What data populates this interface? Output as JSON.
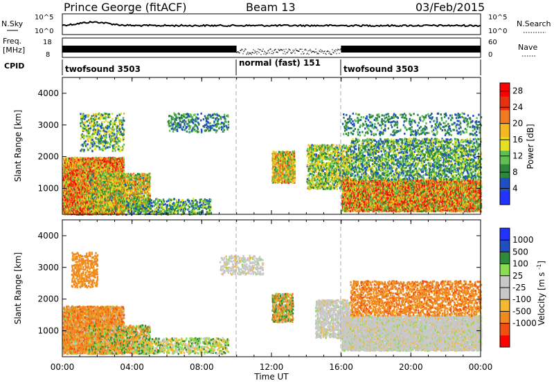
{
  "header": {
    "station": "Prince George (fitACF)",
    "beam": "Beam 13",
    "date": "03/Feb/2015"
  },
  "strips": {
    "nsky": {
      "label": "N.Sky",
      "ticks_left": [
        "10^5",
        "10^0"
      ],
      "ticks_right": [
        "10^5",
        "10^0"
      ],
      "right_label": "N.Search"
    },
    "freq": {
      "label_line1": "Freq.",
      "label_line2": "[MHz]",
      "ticks_left": [
        "18",
        "8"
      ],
      "ticks_right": [
        "60",
        "0"
      ],
      "right_label": "Nave"
    },
    "cpid": {
      "label": "CPID",
      "segments": [
        {
          "name": "twofsound 3503",
          "start_h": 0,
          "end_h": 10
        },
        {
          "name": "normal (fast) 151",
          "start_h": 10,
          "end_h": 16
        },
        {
          "name": "twofsound 3503",
          "start_h": 16,
          "end_h": 24
        }
      ]
    }
  },
  "x_axis": {
    "label": "Time UT",
    "ticks": [
      "00:00",
      "04:00",
      "08:00",
      "12:00",
      "16:00",
      "20:00",
      "00:00"
    ]
  },
  "colors": {
    "power_scale": [
      "#2233ff",
      "#1f4fc0",
      "#2a8a3a",
      "#5fbf50",
      "#e6e020",
      "#f6b820",
      "#f07a20",
      "#e83010",
      "#ff0000"
    ],
    "velocity_scale": [
      "#ff0000",
      "#f05010",
      "#f08a20",
      "#f6b830",
      "#c8c8c8",
      "#c8c8c8",
      "#8adc50",
      "#2c8a3a",
      "#1f4fc0",
      "#2233ff"
    ]
  },
  "chart_data": [
    {
      "type": "heatmap",
      "title": "Power",
      "ylabel": "Slant Range [km]",
      "xlabel": "",
      "xlim": [
        0,
        24
      ],
      "ylim": [
        180,
        4500
      ],
      "yticks": [
        1000,
        2000,
        3000,
        4000
      ],
      "colorbar": {
        "label": "Power [dB]",
        "ticks": [
          4,
          8,
          12,
          16,
          20,
          24,
          28
        ],
        "range": [
          0,
          30
        ]
      },
      "scatter_regions": [
        {
          "x_range_h": [
            0,
            3.5
          ],
          "y_range_km": [
            200,
            2000
          ],
          "value_range": [
            10,
            30
          ],
          "density": 0.9
        },
        {
          "x_range_h": [
            1.5,
            5.0
          ],
          "y_range_km": [
            300,
            1500
          ],
          "value_range": [
            6,
            24
          ],
          "density": 0.6
        },
        {
          "x_range_h": [
            1.0,
            3.5
          ],
          "y_range_km": [
            2200,
            3400
          ],
          "value_range": [
            4,
            18
          ],
          "density": 0.25
        },
        {
          "x_range_h": [
            3.5,
            8.5
          ],
          "y_range_km": [
            200,
            700
          ],
          "value_range": [
            4,
            16
          ],
          "density": 0.35
        },
        {
          "x_range_h": [
            6.0,
            9.5
          ],
          "y_range_km": [
            2800,
            3400
          ],
          "value_range": [
            4,
            12
          ],
          "density": 0.2
        },
        {
          "x_range_h": [
            12.0,
            13.3
          ],
          "y_range_km": [
            1200,
            2200
          ],
          "value_range": [
            8,
            24
          ],
          "density": 0.7
        },
        {
          "x_range_h": [
            14.0,
            16.5
          ],
          "y_range_km": [
            1000,
            2400
          ],
          "value_range": [
            6,
            20
          ],
          "density": 0.45
        },
        {
          "x_range_h": [
            16.0,
            24
          ],
          "y_range_km": [
            300,
            1300
          ],
          "value_range": [
            8,
            30
          ],
          "density": 0.85
        },
        {
          "x_range_h": [
            16.5,
            24
          ],
          "y_range_km": [
            1300,
            2600
          ],
          "value_range": [
            4,
            16
          ],
          "density": 0.35
        },
        {
          "x_range_h": [
            16.0,
            24
          ],
          "y_range_km": [
            2700,
            3400
          ],
          "value_range": [
            4,
            12
          ],
          "density": 0.15
        }
      ]
    },
    {
      "type": "heatmap",
      "title": "Velocity",
      "ylabel": "Slant Range [km]",
      "xlabel": "Time UT",
      "xlim": [
        0,
        24
      ],
      "ylim": [
        180,
        4500
      ],
      "yticks": [
        1000,
        2000,
        3000,
        4000
      ],
      "colorbar": {
        "label": "Velocity [m s^-1]",
        "ticks": [
          1000,
          500,
          100,
          25,
          -25,
          -100,
          -500,
          -1000
        ],
        "range": [
          -1200,
          1200
        ]
      },
      "scatter_regions": [
        {
          "x_range_h": [
            0,
            3.5
          ],
          "y_range_km": [
            300,
            1800
          ],
          "value_range": [
            -600,
            50
          ],
          "density": 0.8
        },
        {
          "x_range_h": [
            1.5,
            5.0
          ],
          "y_range_km": [
            300,
            1200
          ],
          "value_range": [
            -300,
            200
          ],
          "density": 0.5
        },
        {
          "x_range_h": [
            0.5,
            2.0
          ],
          "y_range_km": [
            2400,
            3500
          ],
          "value_range": [
            -500,
            -50
          ],
          "density": 0.35
        },
        {
          "x_range_h": [
            4.0,
            9.5
          ],
          "y_range_km": [
            300,
            800
          ],
          "value_range": [
            -100,
            150
          ],
          "density": 0.35
        },
        {
          "x_range_h": [
            9.0,
            11.5
          ],
          "y_range_km": [
            2800,
            3400
          ],
          "value_range": [
            -30,
            30
          ],
          "density": 0.3
        },
        {
          "x_range_h": [
            12.0,
            13.2
          ],
          "y_range_km": [
            1300,
            2200
          ],
          "value_range": [
            -400,
            300
          ],
          "density": 0.6
        },
        {
          "x_range_h": [
            14.5,
            16.5
          ],
          "y_range_km": [
            800,
            2000
          ],
          "value_range": [
            -30,
            30
          ],
          "density": 0.5
        },
        {
          "x_range_h": [
            16.0,
            24
          ],
          "y_range_km": [
            400,
            1500
          ],
          "value_range": [
            -30,
            30
          ],
          "density": 0.85
        },
        {
          "x_range_h": [
            16.5,
            24
          ],
          "y_range_km": [
            1500,
            2600
          ],
          "value_range": [
            -600,
            -50
          ],
          "density": 0.35
        }
      ]
    }
  ]
}
